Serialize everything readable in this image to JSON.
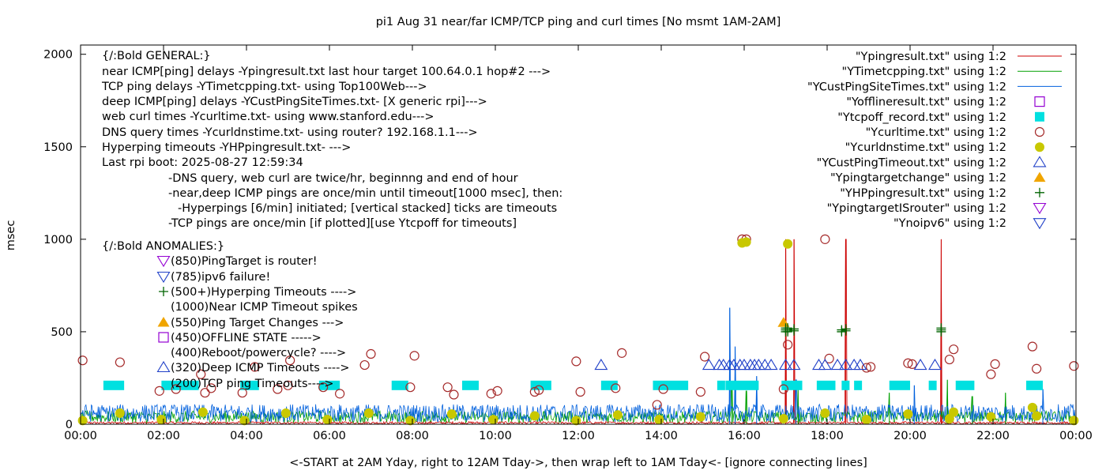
{
  "chart_data": {
    "type": "scatter",
    "title": "pi1 Aug 31  near/far ICMP/TCP ping and curl times [No msmt 1AM-2AM]",
    "xlabel": "<-START at 2AM Yday, right to 12AM Tday->, then wrap left to 1AM Tday<- [ignore connecting lines]",
    "ylabel": "msec",
    "xlim": [
      0,
      24
    ],
    "ylim": [
      0,
      2050
    ],
    "grid": false,
    "legend_position": "top-right",
    "x_ticks": [
      0,
      2,
      4,
      6,
      8,
      10,
      12,
      14,
      16,
      18,
      20,
      22,
      24
    ],
    "x_tick_labels": [
      "00:00",
      "02:00",
      "04:00",
      "06:00",
      "08:00",
      "10:00",
      "12:00",
      "14:00",
      "16:00",
      "18:00",
      "20:00",
      "22:00",
      "00:00"
    ],
    "y_ticks": [
      0,
      500,
      1000,
      1500,
      2000
    ],
    "y_tick_labels": [
      "0",
      "500",
      "1000",
      "1500",
      "2000"
    ],
    "annotations": [
      "{/:Bold GENERAL:}",
      "near ICMP[ping] delays -Ypingresult.txt last hour target 100.64.0.1 hop#2 --->",
      "TCP ping delays -YTimetcpping.txt- using Top100Web--->",
      "deep ICMP[ping] delays -YCustPingSiteTimes.txt- [X generic rpi]--->",
      "web curl times -Ycurltime.txt- using www.stanford.edu--->",
      "DNS query times -Ycurldnstime.txt- using router? 192.168.1.1--->",
      "Hyperping timeouts -YHPpingresult.txt- --->",
      "Last rpi boot: 2025-08-27 12:59:34",
      "-DNS query, web curl are twice/hr, beginnng and end of hour",
      "-near,deep ICMP pings are once/min until timeout[1000 msec], then:",
      "-Hyperpings [6/min] initiated; [vertical stacked] ticks are timeouts",
      "-TCP pings are once/min [if plotted][use Ytcpoff for timeouts]",
      "{/:Bold ANOMALIES:}",
      "(850)PingTarget is router!",
      "(785)ipv6 failure!",
      "(500+)Hyperping Timeouts ---->",
      "(1000)Near ICMP Timeout spikes",
      "(550)Ping Target Changes --->",
      "(450)OFFLINE STATE ----->",
      "(400)Reboot/powercycle? ---->",
      "(320)Deep ICMP Timeouts ---->",
      "(200)TCP ping Timeouts---->"
    ],
    "series": [
      {
        "name": "\"Ypingresult.txt\" using 1:2",
        "color": "#cc0000",
        "style": "line",
        "baseline": 8,
        "spikes": [
          [
            17.0,
            1000
          ],
          [
            17.2,
            1000
          ],
          [
            18.45,
            1000
          ],
          [
            20.75,
            1000
          ]
        ]
      },
      {
        "name": "\"YTimetcpping.txt\" using 1:2",
        "color": "#00a000",
        "style": "line",
        "baseline": 40,
        "spikes": [
          [
            15.7,
            220
          ],
          [
            16.05,
            180
          ],
          [
            17.3,
            190
          ],
          [
            19.5,
            170
          ],
          [
            20.9,
            240
          ],
          [
            21.5,
            150
          ],
          [
            22.3,
            170
          ]
        ]
      },
      {
        "name": "\"YCustPingSiteTimes.txt\" using 1:2",
        "color": "#0060dd",
        "style": "line",
        "baseline": 60,
        "spikes": [
          [
            15.65,
            630
          ],
          [
            15.78,
            420
          ],
          [
            16.3,
            260
          ],
          [
            17.25,
            240
          ],
          [
            20.1,
            210
          ],
          [
            23.2,
            190
          ]
        ]
      },
      {
        "name": "\"Yofflineresult.txt\" using 1:2",
        "color": "#9400d3",
        "style": "open-square",
        "points": []
      },
      {
        "name": "\"Ytcpoff_record.txt\" using 1:2",
        "color": "#00e0e0",
        "style": "filled-square",
        "y": 210,
        "segments": [
          [
            0.55,
            1.05
          ],
          [
            1.95,
            2.85
          ],
          [
            3.85,
            4.3
          ],
          [
            5.75,
            6.25
          ],
          [
            7.5,
            7.9
          ],
          [
            9.2,
            9.6
          ],
          [
            10.85,
            11.35
          ],
          [
            12.55,
            12.95
          ],
          [
            13.8,
            14.65
          ],
          [
            15.35,
            15.5
          ],
          [
            15.55,
            16.35
          ],
          [
            16.9,
            17.4
          ],
          [
            17.75,
            18.2
          ],
          [
            18.35,
            18.5
          ],
          [
            18.65,
            18.8
          ],
          [
            19.5,
            20.0
          ],
          [
            20.45,
            20.6
          ],
          [
            21.1,
            21.55
          ],
          [
            22.8,
            23.2
          ]
        ]
      },
      {
        "name": "\"Ycurltime.txt\" using 1:2",
        "color": "#a52a2a",
        "style": "open-circle",
        "points": [
          [
            0.05,
            345
          ],
          [
            0.95,
            335
          ],
          [
            1.9,
            180
          ],
          [
            2.3,
            190
          ],
          [
            2.9,
            270
          ],
          [
            3.0,
            170
          ],
          [
            3.15,
            195
          ],
          [
            3.9,
            170
          ],
          [
            4.2,
            310
          ],
          [
            4.75,
            190
          ],
          [
            5.0,
            210
          ],
          [
            5.05,
            345
          ],
          [
            5.85,
            200
          ],
          [
            6.25,
            165
          ],
          [
            6.85,
            320
          ],
          [
            7.0,
            380
          ],
          [
            7.95,
            200
          ],
          [
            8.05,
            370
          ],
          [
            8.85,
            200
          ],
          [
            9.0,
            160
          ],
          [
            9.9,
            165
          ],
          [
            10.05,
            180
          ],
          [
            10.95,
            175
          ],
          [
            11.05,
            185
          ],
          [
            11.95,
            340
          ],
          [
            12.05,
            175
          ],
          [
            12.9,
            195
          ],
          [
            13.05,
            385
          ],
          [
            13.9,
            105
          ],
          [
            14.05,
            190
          ],
          [
            14.95,
            175
          ],
          [
            15.05,
            365
          ],
          [
            15.95,
            1000
          ],
          [
            16.05,
            1000
          ],
          [
            16.95,
            190
          ],
          [
            17.05,
            430
          ],
          [
            17.95,
            1000
          ],
          [
            18.05,
            355
          ],
          [
            18.95,
            305
          ],
          [
            19.05,
            310
          ],
          [
            19.95,
            330
          ],
          [
            20.05,
            325
          ],
          [
            20.95,
            350
          ],
          [
            21.05,
            405
          ],
          [
            21.95,
            270
          ],
          [
            22.05,
            325
          ],
          [
            22.95,
            420
          ],
          [
            23.05,
            300
          ],
          [
            23.95,
            315
          ]
        ]
      },
      {
        "name": "\"Ycurldnstime.txt\" using 1:2",
        "color": "#c8c800",
        "style": "filled-circle",
        "points": [
          [
            0.05,
            20
          ],
          [
            0.95,
            60
          ],
          [
            1.95,
            25
          ],
          [
            2.95,
            65
          ],
          [
            3.95,
            20
          ],
          [
            4.95,
            60
          ],
          [
            5.95,
            25
          ],
          [
            6.95,
            60
          ],
          [
            7.95,
            20
          ],
          [
            8.95,
            55
          ],
          [
            9.95,
            25
          ],
          [
            10.95,
            45
          ],
          [
            11.95,
            20
          ],
          [
            12.95,
            50
          ],
          [
            13.95,
            25
          ],
          [
            14.95,
            40
          ],
          [
            15.95,
            980
          ],
          [
            16.05,
            985
          ],
          [
            16.95,
            30
          ],
          [
            17.05,
            975
          ],
          [
            17.95,
            60
          ],
          [
            18.95,
            25
          ],
          [
            19.95,
            55
          ],
          [
            20.95,
            30
          ],
          [
            21.05,
            65
          ],
          [
            21.95,
            40
          ],
          [
            22.95,
            90
          ],
          [
            23.05,
            45
          ],
          [
            23.95,
            20
          ]
        ]
      },
      {
        "name": "\"YCustPingTimeout.txt\" using 1:2",
        "color": "#2040c8",
        "style": "open-triangle-up",
        "y": 320,
        "points": [
          [
            12.55,
            320
          ],
          [
            15.15,
            320
          ],
          [
            15.4,
            320
          ],
          [
            15.5,
            320
          ],
          [
            15.65,
            320
          ],
          [
            15.75,
            320
          ],
          [
            15.9,
            320
          ],
          [
            16.0,
            320
          ],
          [
            16.15,
            320
          ],
          [
            16.25,
            320
          ],
          [
            16.35,
            320
          ],
          [
            16.5,
            320
          ],
          [
            16.65,
            320
          ],
          [
            17.0,
            320
          ],
          [
            17.2,
            320
          ],
          [
            17.8,
            320
          ],
          [
            17.95,
            320
          ],
          [
            18.25,
            320
          ],
          [
            18.45,
            320
          ],
          [
            18.65,
            320
          ],
          [
            18.8,
            320
          ],
          [
            20.25,
            320
          ],
          [
            20.6,
            320
          ]
        ]
      },
      {
        "name": "\"Ypingtargetchange\" using 1:2",
        "color": "#f0a500",
        "style": "filled-triangle-up",
        "points": [
          [
            16.95,
            550
          ]
        ]
      },
      {
        "name": "\"YHPpingresult.txt\" using 1:2",
        "color": "#006400",
        "style": "plus",
        "points": [
          [
            17.0,
            500
          ],
          [
            17.0,
            510
          ],
          [
            17.0,
            520
          ],
          [
            17.05,
            500
          ],
          [
            17.05,
            510
          ],
          [
            17.05,
            520
          ],
          [
            17.2,
            505
          ],
          [
            17.2,
            515
          ],
          [
            18.35,
            500
          ],
          [
            18.35,
            510
          ],
          [
            18.45,
            505
          ],
          [
            18.45,
            515
          ],
          [
            20.75,
            500
          ],
          [
            20.75,
            510
          ],
          [
            20.75,
            520
          ]
        ]
      },
      {
        "name": "\"YpingtargetISrouter\" using 1:2",
        "color": "#9400d3",
        "style": "open-triangle-down",
        "points": []
      },
      {
        "name": "\"Ynoipv6\" using 1:2",
        "color": "#2040c8",
        "style": "open-triangle-down",
        "points": []
      }
    ]
  }
}
